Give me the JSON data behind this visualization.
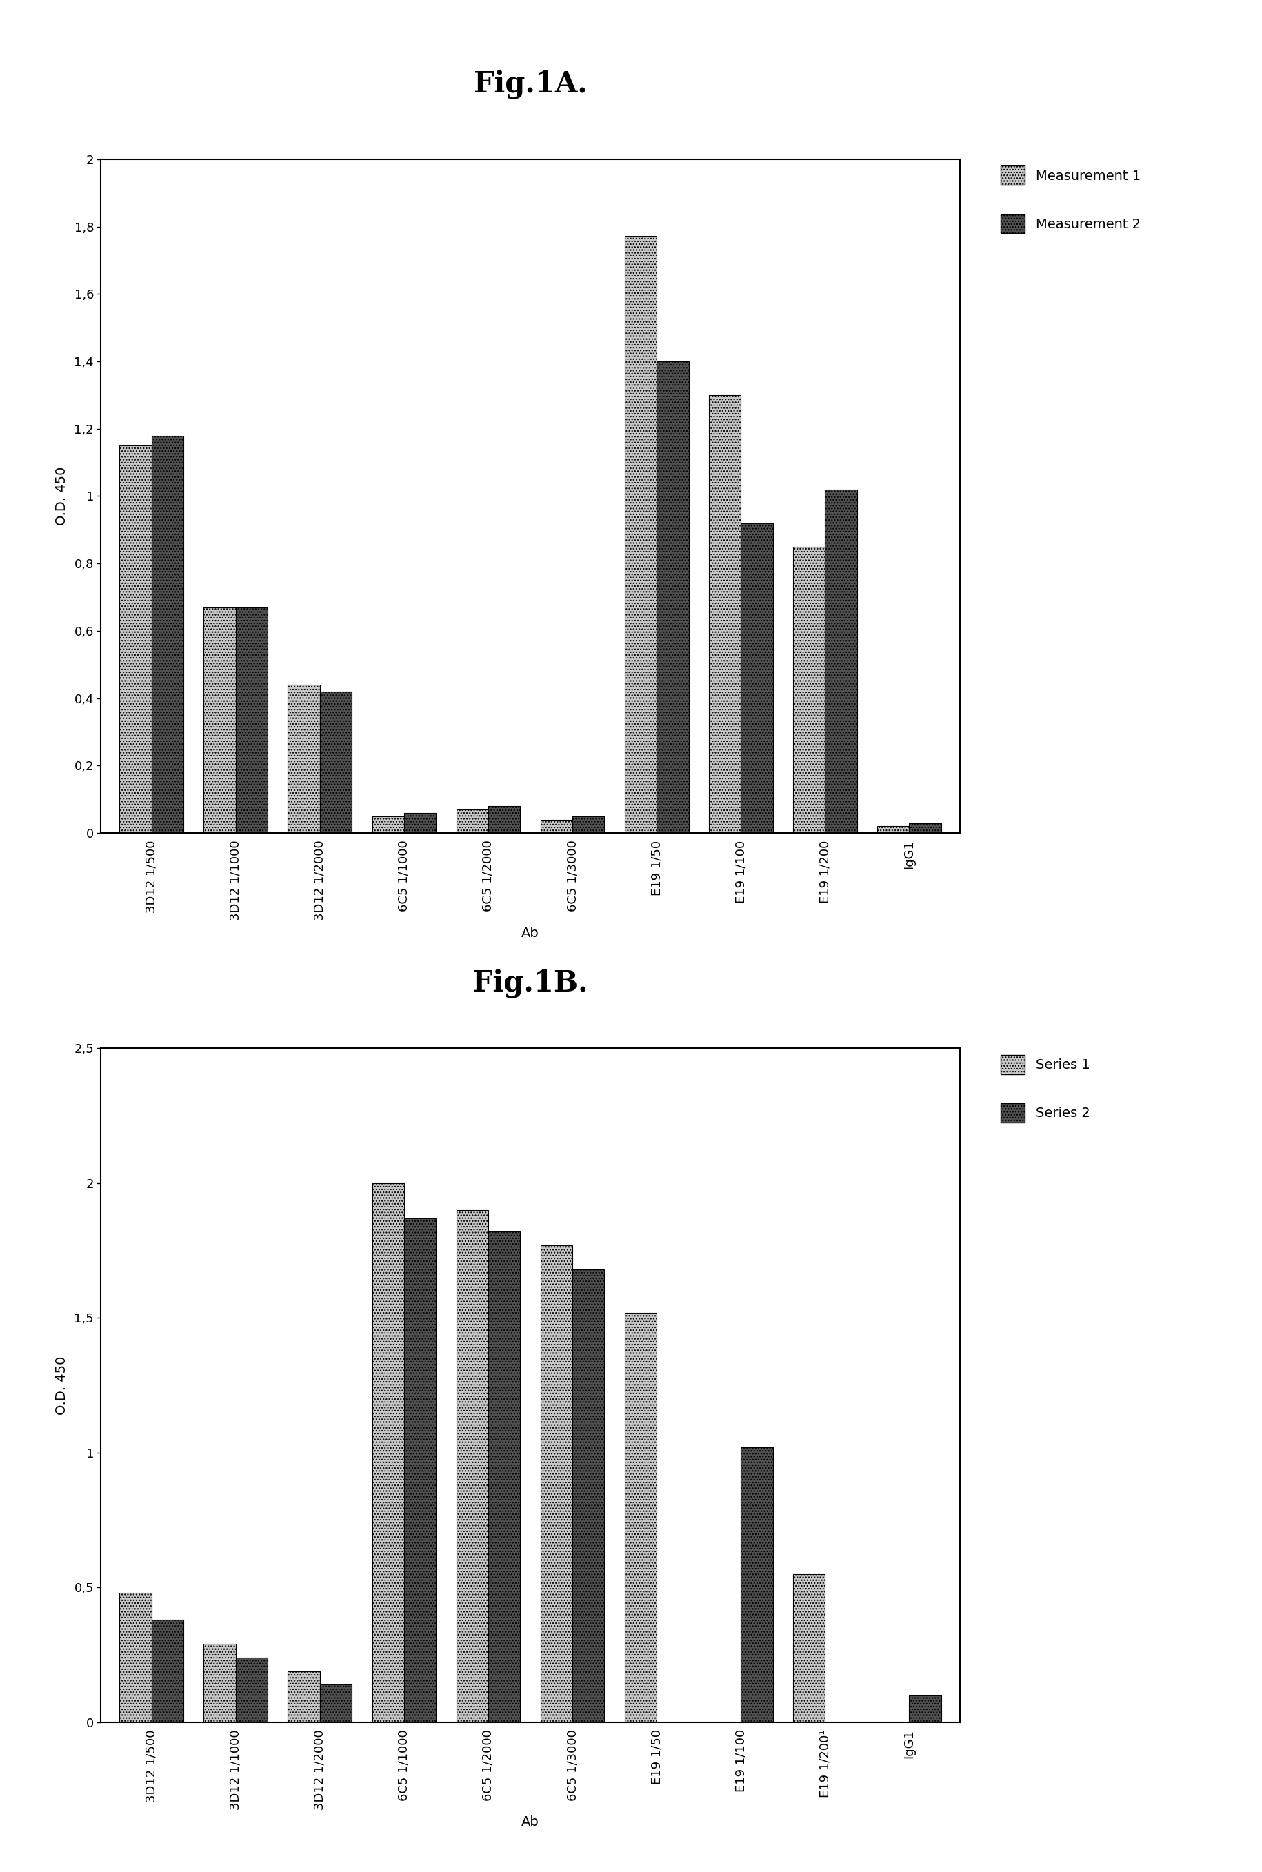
{
  "fig1a": {
    "title": "Fig.1A.",
    "categories": [
      "3D12 1/500",
      "3D12 1/1000",
      "3D12 1/2000",
      "6C5 1/1000",
      "6C5 1/2000",
      "6C5 1/3000",
      "E19 1/50",
      "E19 1/100",
      "E19 1/200",
      "IgG1"
    ],
    "measurement1": [
      1.15,
      0.67,
      0.44,
      0.05,
      0.07,
      0.04,
      1.77,
      1.3,
      0.85,
      0.02
    ],
    "measurement2": [
      1.18,
      0.67,
      0.42,
      0.06,
      0.08,
      0.05,
      1.4,
      0.92,
      1.02,
      0.03
    ],
    "ylabel": "O.D. 450",
    "xlabel": "Ab",
    "ylim": [
      0,
      2
    ],
    "yticks": [
      0,
      0.2,
      0.4,
      0.6,
      0.8,
      1.0,
      1.2,
      1.4,
      1.6,
      1.8,
      2.0
    ],
    "ytick_labels": [
      "0",
      "0,2",
      "0,4",
      "0,6",
      "0,8",
      "1",
      "1,2",
      "1,4",
      "1,6",
      "1,8",
      "2"
    ],
    "color1": "#c8c8c8",
    "color2": "#505050",
    "legend1": "Measurement 1",
    "legend2": "Measurement 2"
  },
  "fig1b": {
    "title": "Fig.1B.",
    "categories": [
      "3D12 1/500",
      "3D12 1/1000",
      "3D12 1/2000",
      "6C5 1/1000",
      "6C5 1/2000",
      "6C5 1/3000",
      "E19 1/50",
      "E19 1/100",
      "E19 1/200¹",
      "IgG1"
    ],
    "categories_display": [
      "3D12 1/500",
      "3D12 1/1000",
      "3D12 1/2000",
      "6C5 1/1000",
      "6C5 1/2000",
      "6C5 1/3000",
      "E19 1/50",
      "E19 1/100",
      "E19 1/200¹",
      "IgG1"
    ],
    "series1": [
      0.48,
      0.29,
      0.19,
      2.0,
      1.9,
      1.77,
      1.52,
      0.0,
      0.55,
      0.0
    ],
    "series2": [
      0.38,
      0.24,
      0.14,
      1.87,
      1.82,
      1.68,
      0.0,
      1.02,
      0.0,
      0.1
    ],
    "ylabel": "O.D. 450",
    "xlabel": "Ab",
    "ylim": [
      0,
      2.5
    ],
    "yticks": [
      0,
      0.5,
      1.0,
      1.5,
      2.0,
      2.5
    ],
    "ytick_labels": [
      "0",
      "0,5",
      "1",
      "1,5",
      "2",
      "2,5"
    ],
    "color1": "#c8c8c8",
    "color2": "#505050",
    "legend1": "Series 1",
    "legend2": "Series 2"
  }
}
